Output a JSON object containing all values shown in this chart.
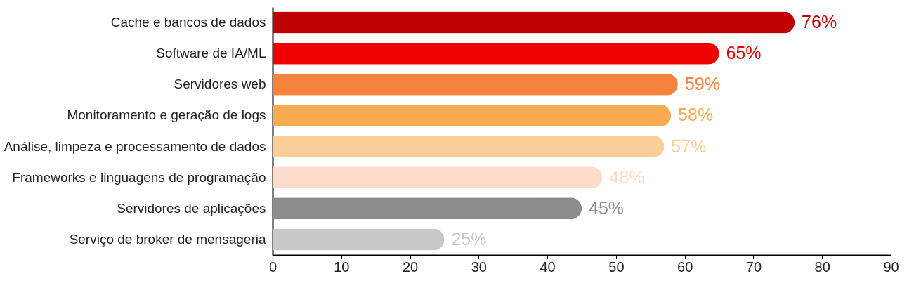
{
  "chart_data": {
    "type": "bar",
    "orientation": "horizontal",
    "categories": [
      "Cache e bancos de dados",
      "Software de IA/ML",
      "Servidores web",
      "Monitoramento e geração de logs",
      "Análise, limpeza e processamento de dados",
      "Frameworks e linguagens de programação",
      "Servidores de aplicações",
      "Serviço de broker de mensageria"
    ],
    "values": [
      76,
      65,
      59,
      58,
      57,
      48,
      45,
      25
    ],
    "colors": [
      "#be0000",
      "#ee0000",
      "#f5833d",
      "#f8ab52",
      "#fbcd98",
      "#fddbcb",
      "#8c8c8c",
      "#c8c8c8"
    ],
    "value_labels": [
      "76%",
      "65%",
      "59%",
      "58%",
      "57%",
      "48%",
      "45%",
      "25%"
    ],
    "xlim": [
      0,
      90
    ],
    "xticks": [
      0,
      10,
      20,
      30,
      40,
      50,
      60,
      70,
      80,
      90
    ],
    "grid": false
  }
}
